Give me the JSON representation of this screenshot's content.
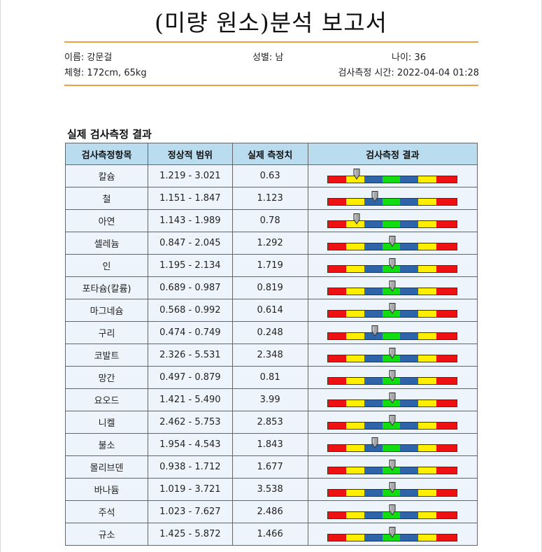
{
  "title": "(미량 원소)분석 보고서",
  "patient": {
    "name": "이름: 강문걸",
    "sex": "성별: 남",
    "age": "나이: 36",
    "body": "체형: 172cm, 65kg",
    "time": "검사측정 시간: 2022-04-04 01:28"
  },
  "section_title": "실제 검사측정 결과",
  "headers": [
    "검사측정항목",
    "정상적 범위",
    "실제 측정치",
    "검사측정 결과"
  ],
  "colors": {
    "red": "#ee1111",
    "yellow": "#ffee00",
    "blue": "#2e64a8",
    "green": "#11dd11",
    "accent_line": "#f0a040",
    "header_bg": "#b9ddef",
    "cell_bg": "#eef4fb"
  },
  "scale_note": "marker level: 0.14 = low-blue, 0.36 = lower normal boundary, 0.50 = normal center",
  "rows": [
    {
      "item": "칼슘",
      "range": "1.219 - 3.021",
      "value": "0.63",
      "level": 0.22
    },
    {
      "item": "철",
      "range": "1.151 - 1.847",
      "value": "1.123",
      "level": 0.36
    },
    {
      "item": "아연",
      "range": "1.143 - 1.989",
      "value": "0.78",
      "level": 0.22
    },
    {
      "item": "셀레늄",
      "range": "0.847 - 2.045",
      "value": "1.292",
      "level": 0.5
    },
    {
      "item": "인",
      "range": "1.195 - 2.134",
      "value": "1.719",
      "level": 0.5
    },
    {
      "item": "포타슘(칼륨)",
      "range": "0.689 - 0.987",
      "value": "0.819",
      "level": 0.5
    },
    {
      "item": "마그네슘",
      "range": "0.568 - 0.992",
      "value": "0.614",
      "level": 0.5
    },
    {
      "item": "구리",
      "range": "0.474 - 0.749",
      "value": "0.248",
      "level": 0.36
    },
    {
      "item": "코발트",
      "range": "2.326 - 5.531",
      "value": "2.348",
      "level": 0.5
    },
    {
      "item": "망간",
      "range": "0.497 - 0.879",
      "value": "0.81",
      "level": 0.5
    },
    {
      "item": "요오드",
      "range": "1.421 - 5.490",
      "value": "3.99",
      "level": 0.5
    },
    {
      "item": "니켈",
      "range": "2.462 - 5.753",
      "value": "2.853",
      "level": 0.5
    },
    {
      "item": "불소",
      "range": "1.954 - 4.543",
      "value": "1.843",
      "level": 0.36
    },
    {
      "item": "몰리브덴",
      "range": "0.938 - 1.712",
      "value": "1.677",
      "level": 0.5
    },
    {
      "item": "바나듐",
      "range": "1.019 - 3.721",
      "value": "3.538",
      "level": 0.5
    },
    {
      "item": "주석",
      "range": "1.023 - 7.627",
      "value": "2.486",
      "level": 0.5
    },
    {
      "item": "규소",
      "range": "1.425 - 5.872",
      "value": "1.466",
      "level": 0.5
    }
  ]
}
